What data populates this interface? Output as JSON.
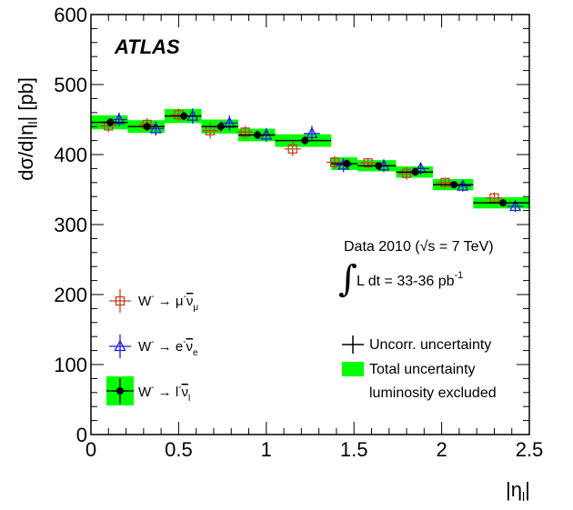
{
  "chart_data": {
    "type": "scatter",
    "title": "",
    "label": "ATLAS",
    "xlabel": "|η_l|",
    "ylabel": "dσ/d|η_l| [pb]",
    "xlim": [
      0,
      2.5
    ],
    "ylim": [
      0,
      600
    ],
    "xticks": [
      "0",
      "0.5",
      "1",
      "1.5",
      "2",
      "2.5"
    ],
    "yticks": [
      "0",
      "100",
      "200",
      "300",
      "400",
      "500",
      "600"
    ],
    "grid": false,
    "legend_placement": "bottom-left",
    "bin_edges": [
      0,
      0.21,
      0.42,
      0.63,
      0.84,
      1.05,
      1.37,
      1.52,
      1.74,
      1.95,
      2.18,
      2.5
    ],
    "series": [
      {
        "name": "W⁻ → μ⁻ν̄_μ",
        "marker": "open-square",
        "color": "#c8401e",
        "x": [
          0.1,
          0.32,
          0.5,
          0.68,
          0.88,
          1.15,
          1.39,
          1.58,
          1.8,
          2.02,
          2.3
        ],
        "y": [
          441,
          443,
          457,
          434,
          432,
          408,
          389,
          388,
          373,
          360,
          338
        ],
        "err": [
          9,
          9,
          9,
          11,
          9,
          10,
          9,
          7,
          9,
          7,
          8
        ]
      },
      {
        "name": "W⁻ → e⁻ν̄_e",
        "marker": "open-triangle",
        "color": "#1e1ee0",
        "x": [
          0.16,
          0.37,
          0.58,
          0.79,
          1.0,
          1.26,
          1.44,
          1.67,
          1.88,
          2.12,
          2.42
        ],
        "y": [
          450,
          437,
          455,
          445,
          428,
          430,
          385,
          384,
          380,
          355,
          326
        ],
        "err": [
          10,
          10,
          11,
          11,
          10,
          11,
          10,
          9,
          9,
          8,
          8
        ]
      },
      {
        "name": "W⁻ → l⁻ν̄_l",
        "marker": "filled-circle",
        "color": "#000000",
        "x": [
          0.11,
          0.32,
          0.53,
          0.74,
          0.95,
          1.22,
          1.46,
          1.64,
          1.85,
          2.07,
          2.35
        ],
        "y": [
          446,
          440,
          455,
          440,
          428,
          420,
          387,
          384,
          375,
          357,
          331
        ],
        "err": [
          6,
          6,
          6,
          7,
          6,
          6,
          6,
          5,
          5,
          5,
          5
        ],
        "total_unc": [
          10,
          9,
          10,
          10,
          9,
          9,
          9,
          8,
          8,
          8,
          8
        ]
      }
    ],
    "legend": [
      "W⁻ → μ⁻ν̄_μ",
      "W⁻ → e⁻ν̄_e",
      "W⁻ → l⁻ν̄_l"
    ],
    "annotations": {
      "data_label": "Data 2010 (√s = 7 TeV)",
      "lumi_label": "L dt = 33-36 pb",
      "lumi_exp": "-1",
      "integral_symbol": "∫",
      "uncorr_label": "Uncorr. uncertainty",
      "total_label_1": "Total uncertainty",
      "total_label_2": "luminosity excluded"
    },
    "colors": {
      "band": "#00ff00",
      "muon": "#c8401e",
      "electron": "#1e1ee0",
      "combined": "#000000"
    }
  }
}
